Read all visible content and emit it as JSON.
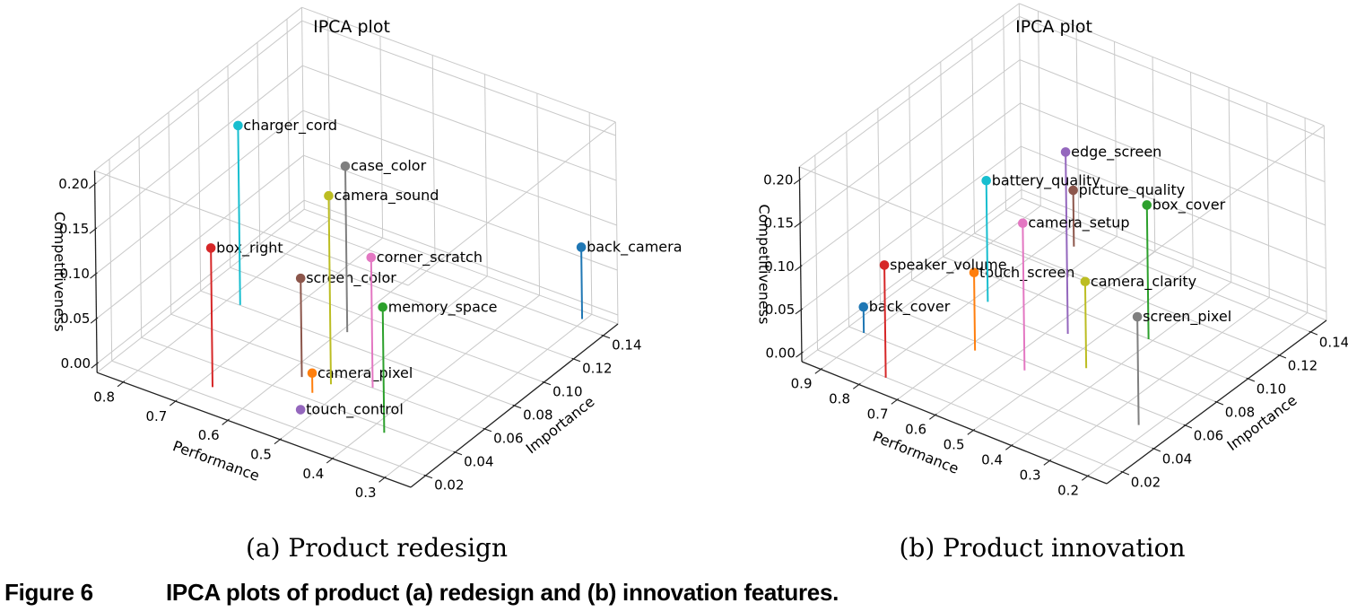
{
  "figure": {
    "caption_label": "Figure 6",
    "caption_text": "IPCA plots of product (a) redesign and (b) innovation features.",
    "background": "#ffffff",
    "text_color": "#000000",
    "grid_color": "#c9c9c9",
    "axis_color": "#222222"
  },
  "chart_data": [
    {
      "id": "redesign",
      "type": "scatter",
      "plot_style": "3d-stem",
      "title": "IPCA plot",
      "subcaption": "(a) Product redesign",
      "xlabel": "Performance",
      "ylabel": "Importance",
      "zlabel": "Competitiveness",
      "x_axis_inverted_display": true,
      "grid": true,
      "xlim": [
        0.25,
        0.85
      ],
      "ylim": [
        0.01,
        0.15
      ],
      "zlim": [
        -0.01,
        0.215
      ],
      "x_ticks": [
        0.8,
        0.7,
        0.6,
        0.5,
        0.4,
        0.3
      ],
      "y_ticks": [
        0.02,
        0.04,
        0.06,
        0.08,
        0.1,
        0.12,
        0.14
      ],
      "z_ticks": [
        0.0,
        0.05,
        0.1,
        0.15,
        0.2
      ],
      "points": [
        {
          "label": "back_camera",
          "performance": 0.29,
          "importance": 0.14,
          "competitiveness": 0.08,
          "color": "#1f77b4"
        },
        {
          "label": "camera_pixel",
          "performance": 0.52,
          "importance": 0.039,
          "competitiveness": 0.022,
          "color": "#ff7f0e"
        },
        {
          "label": "memory_space",
          "performance": 0.36,
          "importance": 0.031,
          "competitiveness": 0.14,
          "color": "#2ca02c"
        },
        {
          "label": "box_right",
          "performance": 0.66,
          "importance": 0.021,
          "competitiveness": 0.155,
          "color": "#d62728"
        },
        {
          "label": "touch_control",
          "performance": 0.5,
          "importance": 0.024,
          "competitiveness": 0.005,
          "color": "#9467bd"
        },
        {
          "label": "screen_color",
          "performance": 0.56,
          "importance": 0.046,
          "competitiveness": 0.11,
          "color": "#8c564b"
        },
        {
          "label": "corner_scratch",
          "performance": 0.45,
          "importance": 0.055,
          "competitiveness": 0.145,
          "color": "#e377c2"
        },
        {
          "label": "case_color",
          "performance": 0.575,
          "importance": 0.082,
          "competitiveness": 0.185,
          "color": "#7f7f7f"
        },
        {
          "label": "camera_sound",
          "performance": 0.51,
          "importance": 0.048,
          "competitiveness": 0.21,
          "color": "#bcbd22"
        },
        {
          "label": "charger_cord",
          "performance": 0.76,
          "importance": 0.075,
          "competitiveness": 0.2,
          "color": "#17becf"
        }
      ]
    },
    {
      "id": "innovation",
      "type": "scatter",
      "plot_style": "3d-stem",
      "title": "IPCA plot",
      "subcaption": "(b) Product innovation",
      "xlabel": "Performance",
      "ylabel": "Importance",
      "zlabel": "Competitiveness",
      "x_axis_inverted_display": true,
      "grid": true,
      "xlim": [
        0.15,
        0.95
      ],
      "ylim": [
        0.01,
        0.15
      ],
      "zlim": [
        -0.01,
        0.215
      ],
      "x_ticks": [
        0.9,
        0.8,
        0.7,
        0.6,
        0.5,
        0.4,
        0.3,
        0.2
      ],
      "y_ticks": [
        0.02,
        0.04,
        0.06,
        0.08,
        0.1,
        0.12,
        0.14
      ],
      "z_ticks": [
        0.0,
        0.05,
        0.1,
        0.15,
        0.2
      ],
      "points": [
        {
          "label": "back_cover",
          "performance": 0.89,
          "importance": 0.035,
          "competitiveness": 0.03,
          "color": "#1f77b4"
        },
        {
          "label": "touch_screen",
          "performance": 0.66,
          "importance": 0.05,
          "competitiveness": 0.09,
          "color": "#ff7f0e"
        },
        {
          "label": "box_cover",
          "performance": 0.39,
          "importance": 0.095,
          "competitiveness": 0.155,
          "color": "#2ca02c"
        },
        {
          "label": "speaker_volume",
          "performance": 0.75,
          "importance": 0.015,
          "competitiveness": 0.13,
          "color": "#d62728"
        },
        {
          "label": "edge_screen",
          "performance": 0.54,
          "importance": 0.08,
          "competitiveness": 0.21,
          "color": "#9467bd"
        },
        {
          "label": "picture_quality",
          "performance": 0.73,
          "importance": 0.13,
          "competitiveness": 0.065,
          "color": "#8c564b"
        },
        {
          "label": "camera_setup",
          "performance": 0.53,
          "importance": 0.05,
          "competitiveness": 0.17,
          "color": "#e377c2"
        },
        {
          "label": "screen_pixel",
          "performance": 0.21,
          "importance": 0.045,
          "competitiveness": 0.125,
          "color": "#7f7f7f"
        },
        {
          "label": "camera_clarity",
          "performance": 0.43,
          "importance": 0.065,
          "competitiveness": 0.1,
          "color": "#bcbd22"
        },
        {
          "label": "battery_quality",
          "performance": 0.75,
          "importance": 0.08,
          "competitiveness": 0.14,
          "color": "#17becf"
        }
      ]
    }
  ]
}
